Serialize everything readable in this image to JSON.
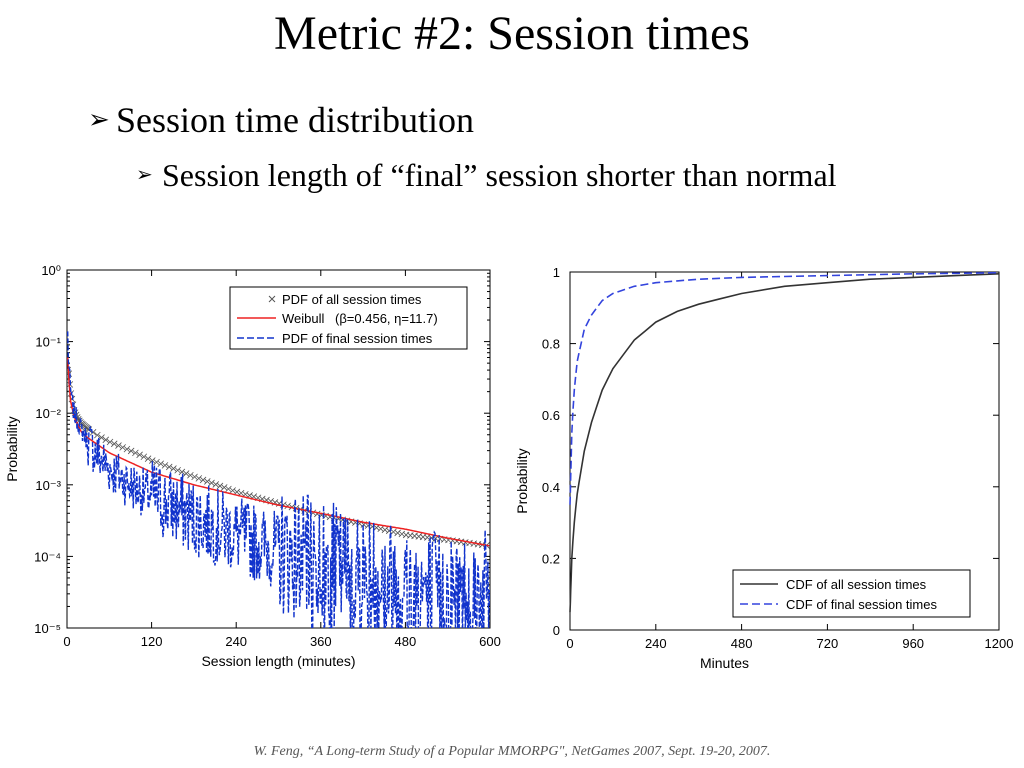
{
  "slide": {
    "title": "Metric #2: Session times",
    "bullet_1": "Session time distribution",
    "bullet_1_1": "Session length of “final” session shorter than normal",
    "citation": "W. Feng, “A Long-term Study of a Popular MMORPG\", NetGames 2007, Sept. 19-20, 2007.",
    "bullet_icon": "arrowhead-bullet-icon"
  },
  "chart_data": [
    {
      "type": "line",
      "xlabel": "Session length (minutes)",
      "ylabel": "Probability",
      "xlim": [
        0,
        600
      ],
      "ylim": [
        1e-05,
        1
      ],
      "y_scale": "log",
      "x_ticks": [
        0,
        120,
        240,
        360,
        480,
        600
      ],
      "y_ticks": [
        "10⁰",
        "10⁻¹",
        "10⁻²",
        "10⁻³",
        "10⁻⁴",
        "10⁻⁵"
      ],
      "legend_position": "top-right",
      "grid": false,
      "series": [
        {
          "name": "PDF of all session times",
          "marker": "x",
          "color": "#555555",
          "x": [
            2,
            5,
            10,
            15,
            20,
            30,
            45,
            60,
            90,
            120,
            150,
            180,
            240,
            300,
            360,
            420,
            480,
            540,
            600
          ],
          "y": [
            0.04,
            0.02,
            0.011,
            0.0085,
            0.0072,
            0.006,
            0.0048,
            0.004,
            0.003,
            0.0022,
            0.0017,
            0.0013,
            0.0008,
            0.00055,
            0.00038,
            0.00028,
            0.0002,
            0.00017,
            0.00014
          ]
        },
        {
          "name": "Weibull",
          "name_detail": "(β=0.456, η=11.7)",
          "color": "#ee2222",
          "x": [
            1,
            2,
            5,
            10,
            20,
            30,
            60,
            120,
            180,
            240,
            300,
            360,
            420,
            480,
            540,
            600
          ],
          "y": [
            0.06,
            0.035,
            0.015,
            0.009,
            0.0055,
            0.0045,
            0.0028,
            0.0015,
            0.001,
            0.00072,
            0.00052,
            0.0004,
            0.0003,
            0.00024,
            0.00018,
            0.00014
          ]
        },
        {
          "name": "PDF of final session times",
          "style": "dashed",
          "color": "#1133cc",
          "x": [
            1,
            2,
            5,
            10,
            20,
            30,
            45,
            60,
            90,
            120,
            180,
            240,
            300,
            360,
            420,
            480,
            540,
            600
          ],
          "y": [
            0.13,
            0.06,
            0.02,
            0.01,
            0.006,
            0.004,
            0.0025,
            0.0017,
            0.001,
            0.0007,
            0.00035,
            0.0002,
            0.00012,
            8e-05,
            5.5e-05,
            4e-05,
            3e-05,
            3e-05
          ]
        }
      ]
    },
    {
      "type": "line",
      "xlabel": "Minutes",
      "ylabel": "Probability",
      "xlim": [
        0,
        1200
      ],
      "ylim": [
        0,
        1
      ],
      "x_ticks": [
        0,
        240,
        480,
        720,
        960,
        1200
      ],
      "y_ticks": [
        0,
        0.2,
        0.4,
        0.6,
        0.8,
        1
      ],
      "legend_position": "bottom-right",
      "grid": false,
      "series": [
        {
          "name": "CDF of all session times",
          "color": "#333333",
          "x": [
            0,
            5,
            10,
            20,
            40,
            60,
            90,
            120,
            180,
            240,
            300,
            360,
            480,
            600,
            720,
            840,
            960,
            1080,
            1200
          ],
          "y": [
            0.05,
            0.2,
            0.28,
            0.38,
            0.5,
            0.58,
            0.67,
            0.73,
            0.81,
            0.86,
            0.89,
            0.91,
            0.94,
            0.96,
            0.97,
            0.98,
            0.985,
            0.99,
            0.995
          ]
        },
        {
          "name": "CDF of final session times",
          "style": "dashed",
          "color": "#3344dd",
          "x": [
            0,
            5,
            10,
            20,
            40,
            60,
            90,
            120,
            180,
            240,
            360,
            480,
            720,
            960,
            1200
          ],
          "y": [
            0.35,
            0.55,
            0.65,
            0.75,
            0.84,
            0.88,
            0.92,
            0.94,
            0.96,
            0.97,
            0.98,
            0.985,
            0.99,
            0.995,
            0.998
          ]
        }
      ]
    }
  ]
}
